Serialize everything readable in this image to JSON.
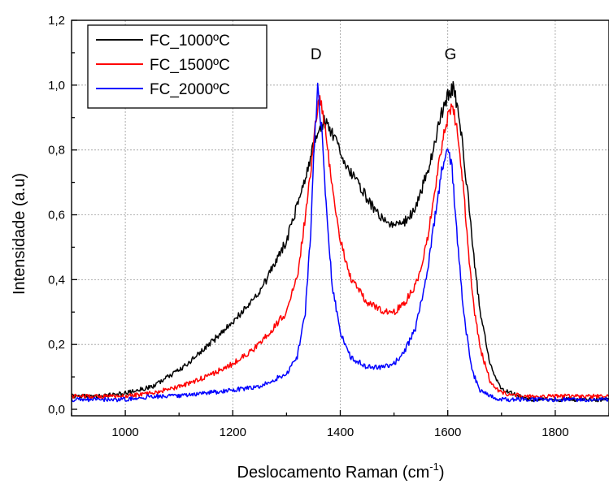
{
  "chart_data": {
    "type": "line",
    "xlabel": "Deslocamento Raman (cm",
    "xlabel_sup": "-1",
    "xlabel_suffix": ")",
    "ylabel": "Intensidade (a.u)",
    "xlim": [
      900,
      1900
    ],
    "ylim": [
      -0.02,
      1.2
    ],
    "x_ticks": [
      1000,
      1200,
      1400,
      1600,
      1800
    ],
    "x_tick_labels": [
      "1000",
      "1200",
      "1400",
      "1600",
      "1800"
    ],
    "y_ticks": [
      0.0,
      0.2,
      0.4,
      0.6,
      0.8,
      1.0,
      1.2
    ],
    "y_tick_labels": [
      "0,0",
      "0,2",
      "0,4",
      "0,6",
      "0,8",
      "1,0",
      "1,2"
    ],
    "grid": true,
    "legend_position": "top-left",
    "annotations": [
      {
        "text": "D",
        "x": 1355,
        "y": 1.08
      },
      {
        "text": "G",
        "x": 1605,
        "y": 1.08
      }
    ],
    "series": [
      {
        "name": "FC_1000ºC",
        "color": "#000000",
        "x": [
          900,
          950,
          1000,
          1050,
          1100,
          1150,
          1200,
          1250,
          1300,
          1320,
          1340,
          1355,
          1370,
          1385,
          1400,
          1420,
          1450,
          1480,
          1500,
          1520,
          1540,
          1560,
          1575,
          1590,
          1600,
          1610,
          1620,
          1630,
          1640,
          1650,
          1660,
          1680,
          1700,
          1750,
          1800,
          1850,
          1900
        ],
        "y": [
          0.04,
          0.04,
          0.05,
          0.07,
          0.12,
          0.19,
          0.27,
          0.36,
          0.52,
          0.63,
          0.75,
          0.84,
          0.89,
          0.85,
          0.79,
          0.73,
          0.65,
          0.58,
          0.57,
          0.58,
          0.62,
          0.72,
          0.82,
          0.92,
          0.97,
          0.99,
          0.92,
          0.78,
          0.62,
          0.45,
          0.3,
          0.13,
          0.06,
          0.03,
          0.03,
          0.03,
          0.03
        ]
      },
      {
        "name": "FC_1500ºC",
        "color": "#ff0000",
        "x": [
          900,
          950,
          1000,
          1050,
          1100,
          1150,
          1200,
          1250,
          1300,
          1320,
          1340,
          1355,
          1362,
          1372,
          1385,
          1400,
          1420,
          1450,
          1480,
          1500,
          1520,
          1540,
          1560,
          1575,
          1590,
          1600,
          1608,
          1618,
          1630,
          1640,
          1650,
          1660,
          1680,
          1700,
          1750,
          1800,
          1850,
          1900
        ],
        "y": [
          0.04,
          0.04,
          0.04,
          0.05,
          0.07,
          0.1,
          0.14,
          0.2,
          0.3,
          0.41,
          0.66,
          0.9,
          0.96,
          0.86,
          0.68,
          0.52,
          0.4,
          0.33,
          0.3,
          0.3,
          0.33,
          0.38,
          0.5,
          0.66,
          0.82,
          0.9,
          0.93,
          0.87,
          0.66,
          0.45,
          0.3,
          0.19,
          0.08,
          0.05,
          0.04,
          0.04,
          0.04,
          0.04
        ]
      },
      {
        "name": "FC_2000ºC",
        "color": "#0000ff",
        "x": [
          900,
          950,
          1000,
          1050,
          1100,
          1150,
          1200,
          1250,
          1300,
          1320,
          1335,
          1345,
          1352,
          1358,
          1365,
          1375,
          1385,
          1400,
          1420,
          1450,
          1480,
          1500,
          1520,
          1540,
          1560,
          1575,
          1590,
          1600,
          1608,
          1618,
          1630,
          1645,
          1660,
          1680,
          1700,
          1750,
          1800,
          1850,
          1900
        ],
        "y": [
          0.03,
          0.03,
          0.03,
          0.04,
          0.04,
          0.05,
          0.06,
          0.07,
          0.11,
          0.16,
          0.3,
          0.55,
          0.83,
          0.99,
          0.87,
          0.6,
          0.38,
          0.24,
          0.16,
          0.13,
          0.13,
          0.14,
          0.18,
          0.25,
          0.4,
          0.58,
          0.75,
          0.8,
          0.74,
          0.52,
          0.29,
          0.12,
          0.06,
          0.04,
          0.03,
          0.03,
          0.03,
          0.03,
          0.03
        ]
      }
    ]
  }
}
